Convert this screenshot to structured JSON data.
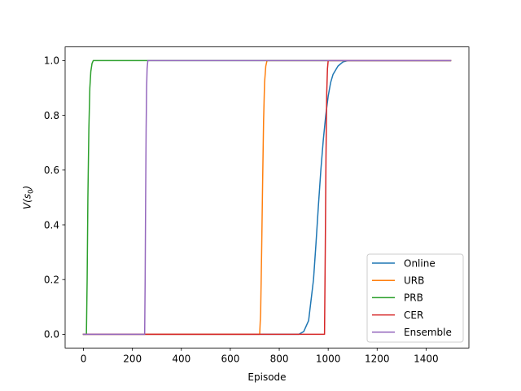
{
  "chart_data": {
    "type": "line",
    "title": "",
    "xlabel": "Episode",
    "ylabel_prefix": "V(s",
    "ylabel_sub": "0",
    "ylabel_suffix": ")",
    "xlim": [
      -75,
      1575
    ],
    "ylim": [
      -0.05,
      1.05
    ],
    "xticks": [
      0,
      200,
      400,
      600,
      800,
      1000,
      1200,
      1400
    ],
    "yticks": [
      0.0,
      0.2,
      0.4,
      0.6,
      0.8,
      1.0
    ],
    "xtick_labels": [
      "0",
      "200",
      "400",
      "600",
      "800",
      "1000",
      "1200",
      "1400"
    ],
    "ytick_labels": [
      "0.0",
      "0.2",
      "0.4",
      "0.6",
      "0.8",
      "1.0"
    ],
    "legend_position": "lower-right",
    "series": [
      {
        "name": "Online",
        "color": "#1f77b4",
        "x": [
          0,
          880,
          900,
          920,
          940,
          950,
          960,
          970,
          980,
          990,
          1000,
          1010,
          1020,
          1040,
          1060,
          1080,
          1100,
          1500
        ],
        "y": [
          0,
          0,
          0.01,
          0.05,
          0.2,
          0.33,
          0.47,
          0.6,
          0.71,
          0.8,
          0.87,
          0.92,
          0.95,
          0.98,
          0.995,
          1.0,
          1.0,
          1.0
        ]
      },
      {
        "name": "URB",
        "color": "#ff7f0e",
        "x": [
          0,
          720,
          724,
          728,
          732,
          736,
          740,
          745,
          750,
          1500
        ],
        "y": [
          0,
          0,
          0.08,
          0.3,
          0.55,
          0.78,
          0.92,
          0.98,
          1.0,
          1.0
        ]
      },
      {
        "name": "PRB",
        "color": "#2ca02c",
        "x": [
          0,
          12,
          15,
          18,
          22,
          26,
          30,
          35,
          40,
          50,
          1500
        ],
        "y": [
          0,
          0,
          0.2,
          0.5,
          0.75,
          0.9,
          0.96,
          0.99,
          1.0,
          1.0,
          1.0
        ]
      },
      {
        "name": "CER",
        "color": "#d62728",
        "x": [
          0,
          985,
          988,
          991,
          994,
          997,
          1000,
          1500
        ],
        "y": [
          0,
          0,
          0.3,
          0.65,
          0.88,
          0.97,
          1.0,
          1.0
        ]
      },
      {
        "name": "Ensemble",
        "color": "#9467bd",
        "x": [
          0,
          250,
          252,
          254,
          256,
          258,
          260,
          263,
          1500
        ],
        "y": [
          0,
          0,
          0.2,
          0.5,
          0.75,
          0.9,
          0.97,
          1.0,
          1.0
        ]
      }
    ]
  }
}
